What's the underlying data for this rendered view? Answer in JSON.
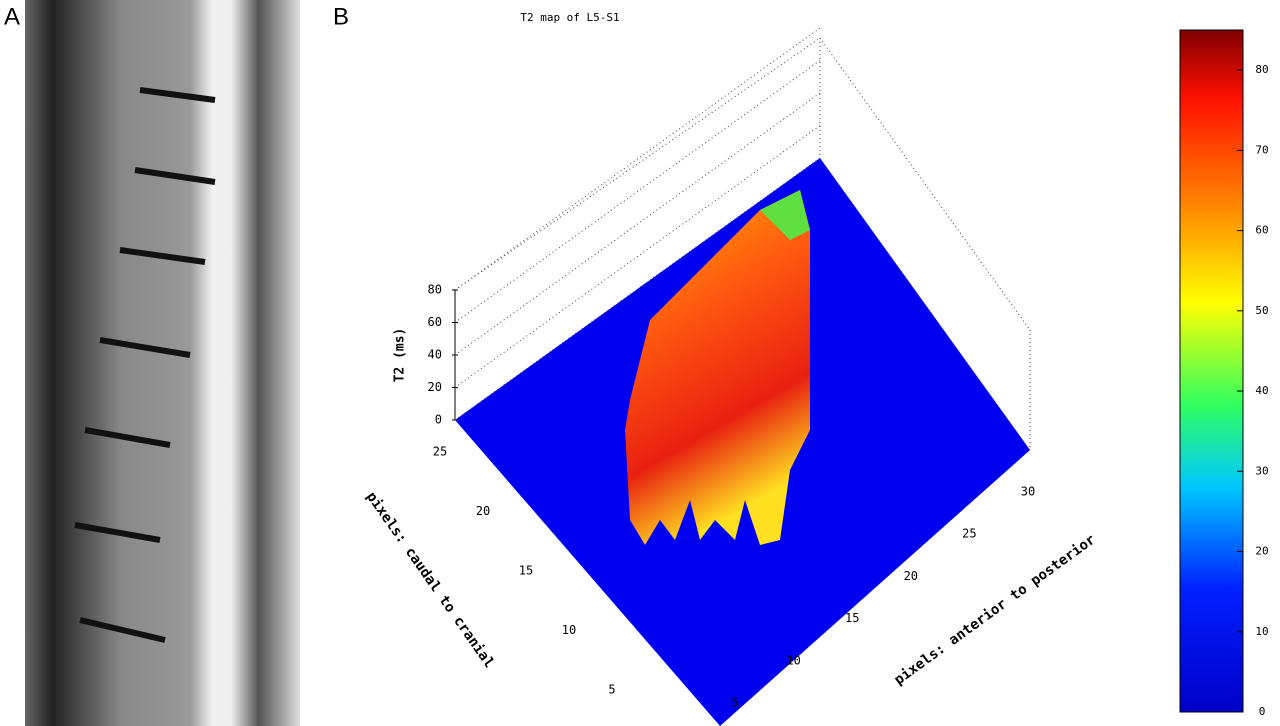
{
  "chart_data": {
    "type": "surface",
    "panel_labels": [
      "A",
      "B"
    ],
    "title": "T2 map of L5-S1",
    "z_label": "T2 (ms)",
    "zlim": [
      0,
      80
    ],
    "zticks": [
      0,
      20,
      40,
      60,
      80
    ],
    "x_label": "pixels: anterior to posterior",
    "xticks": [
      5,
      10,
      15,
      20,
      25,
      30
    ],
    "y_label": "pixels: caudal to cranial",
    "yticks": [
      5,
      10,
      15,
      20,
      25
    ],
    "colorbar": {
      "lim": [
        0,
        85
      ],
      "ticks": [
        0,
        10,
        20,
        30,
        40,
        50,
        60,
        70,
        80
      ]
    }
  }
}
